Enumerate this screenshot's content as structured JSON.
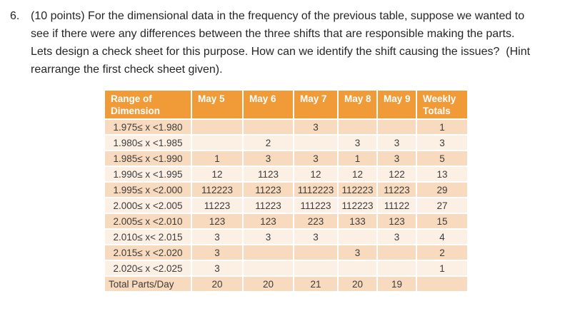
{
  "question": {
    "number": "6.",
    "text": "(10 points) For the dimensional data in the frequency of the previous table, suppose we wanted to see if there were any differences between the three shifts that are responsible making the parts. Lets design a check sheet for this purpose. How can we identify the shift causing the issues?  (Hint rearrange the first check sheet given)."
  },
  "table": {
    "columns": [
      "Range of Dimension",
      "May 5",
      "May 6",
      "May 7",
      "May 8",
      "May 9",
      "Weekly Totals"
    ],
    "rows": [
      {
        "label": "1.975≤ x <1.980",
        "values": [
          "",
          "",
          "3",
          "",
          "",
          "1"
        ]
      },
      {
        "label": "1.980≤ x <1.985",
        "values": [
          "",
          "2",
          "",
          "3",
          "3",
          "3"
        ]
      },
      {
        "label": "1.985≤ x <1.990",
        "values": [
          "1",
          "3",
          "3",
          "1",
          "3",
          "5"
        ]
      },
      {
        "label": "1.990≤ x <1.995",
        "values": [
          "12",
          "1123",
          "12",
          "12",
          "122",
          "13"
        ]
      },
      {
        "label": "1.995≤ x <2.000",
        "values": [
          "112223",
          "11223",
          "1112223",
          "112223",
          "11223",
          "29"
        ]
      },
      {
        "label": "2.000≤ x <2.005",
        "values": [
          "11223",
          "11223",
          "111223",
          "112223",
          "11122",
          "27"
        ]
      },
      {
        "label": "2.005≤ x <2.010",
        "values": [
          "123",
          "123",
          "223",
          "133",
          "123",
          "15"
        ]
      },
      {
        "label": "2.010≤ x< 2.015",
        "values": [
          "3",
          "3",
          "3",
          "",
          "3",
          "4"
        ]
      },
      {
        "label": "2.015≤ x <2.020",
        "values": [
          "3",
          "",
          "",
          "3",
          "",
          "2"
        ]
      },
      {
        "label": "2.020≤ x <2.025",
        "values": [
          "3",
          "",
          "",
          "",
          "",
          "1"
        ]
      },
      {
        "label": "Total Parts/Day",
        "values": [
          "20",
          "20",
          "21",
          "20",
          "19",
          ""
        ]
      }
    ]
  },
  "colors": {
    "header_bg": "#F09A38",
    "header_text": "#FFFFFF",
    "row_band_dark": "#F8DABE",
    "row_band_light": "#FCF0E5",
    "table_text": "#3C3C3C",
    "question_text": "#262626",
    "gridline": "#FFFFFF"
  }
}
